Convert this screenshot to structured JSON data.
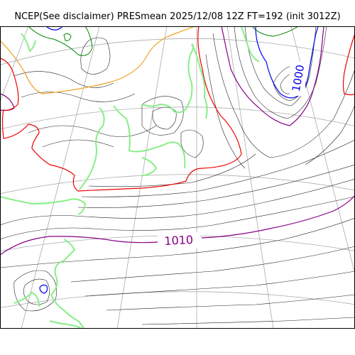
{
  "title": "NCEP(See disclaimer) PRESmean 2025/12/08 12Z FT=192 (init 3012Z)",
  "contour_labels": [
    {
      "name": "label-1000",
      "text": "1000"
    },
    {
      "name": "label-1010",
      "text": "1010"
    }
  ],
  "colors": {
    "isobar_thin": "#222222",
    "isobar_1000": "#0000ee",
    "isobar_1010": "#880088",
    "isobar_1012": "#ee0000",
    "isobar_orange": "#f0a020",
    "isobar_green": "#008800",
    "coastline": "#88ee88",
    "graticule": "#aaaaaa",
    "frame": "#000000"
  }
}
